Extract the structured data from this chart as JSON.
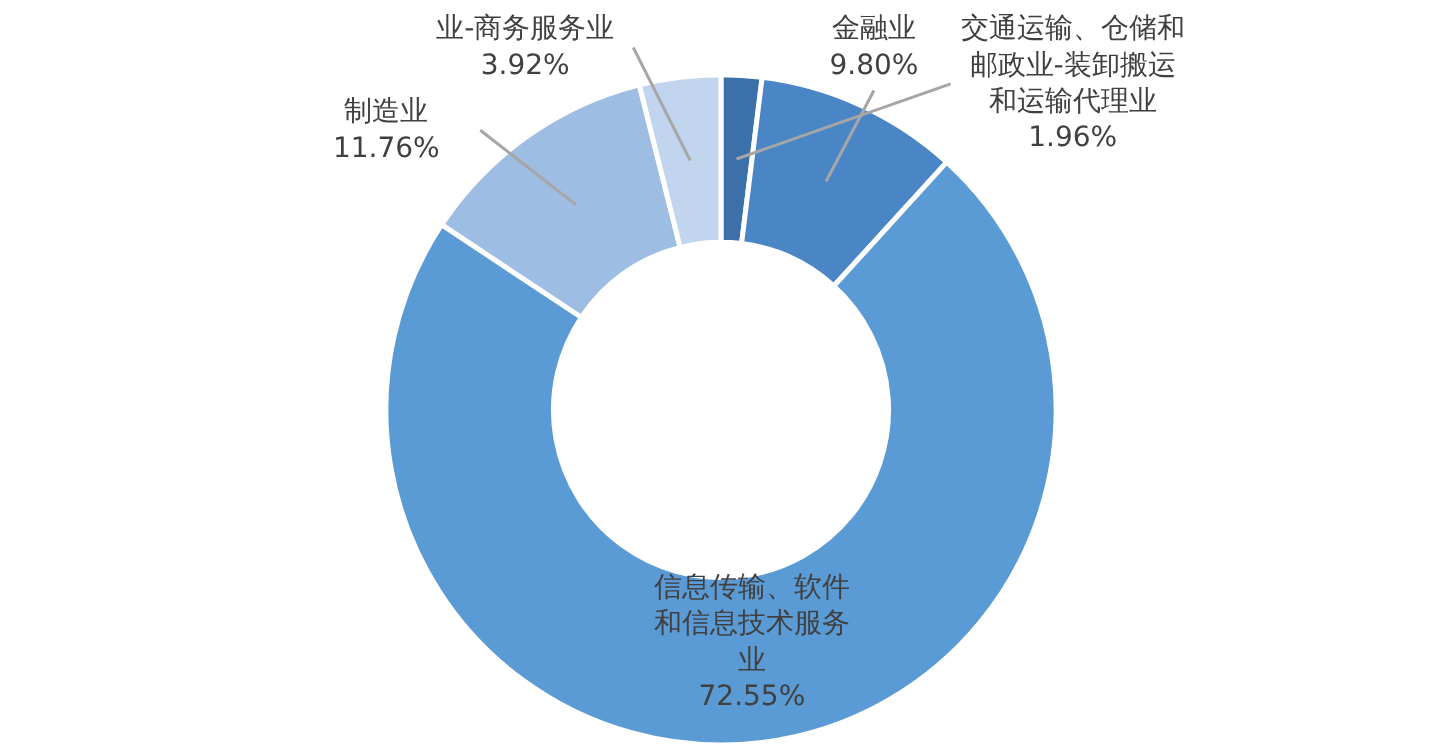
{
  "chart_data": {
    "type": "donut",
    "categories": [
      "交通运输、仓储和邮政业-装卸搬运和运输代理业",
      "金融业",
      "信息传输、软件和信息技术服务业",
      "制造业",
      "业-商务服务业"
    ],
    "values": [
      1.96,
      9.8,
      72.55,
      11.76,
      3.92
    ],
    "value_labels": [
      "1.96%",
      "9.80%",
      "72.55%",
      "11.76%",
      "3.92%"
    ],
    "colors": [
      "#3b70a9",
      "#4a86c6",
      "#5b9bd5",
      "#9dbde3",
      "#c2d5ee"
    ],
    "legend": false
  }
}
